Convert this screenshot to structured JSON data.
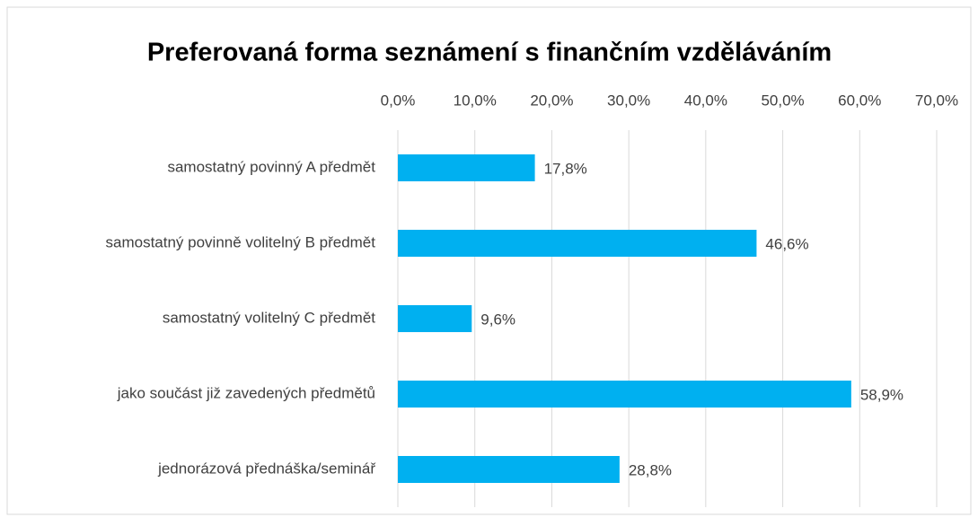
{
  "chart_data": {
    "type": "bar",
    "orientation": "horizontal",
    "title": "Preferovaná forma seznámení s finančním vzděláváním",
    "categories": [
      "samostatný povinný A předmět",
      "samostatný povinně volitelný B předmět",
      "samostatný volitelný C předmět",
      "jako součást již zavedených předmětů",
      "jednorázová přednáška/seminář"
    ],
    "values": [
      17.8,
      46.6,
      9.6,
      58.9,
      28.8
    ],
    "value_labels": [
      "17,8%",
      "46,6%",
      "9,6%",
      "58,9%",
      "28,8%"
    ],
    "color": "#00b0f0",
    "xlim": [
      0,
      70
    ],
    "xticks": [
      {
        "value": 0,
        "label": "0,0%"
      },
      {
        "value": 10,
        "label": "10,0%"
      },
      {
        "value": 20,
        "label": "20,0%"
      },
      {
        "value": 30,
        "label": "30,0%"
      },
      {
        "value": 40,
        "label": "40,0%"
      },
      {
        "value": 50,
        "label": "50,0%"
      },
      {
        "value": 60,
        "label": "60,0%"
      },
      {
        "value": 70,
        "label": "70,0%"
      }
    ],
    "grid": true
  }
}
